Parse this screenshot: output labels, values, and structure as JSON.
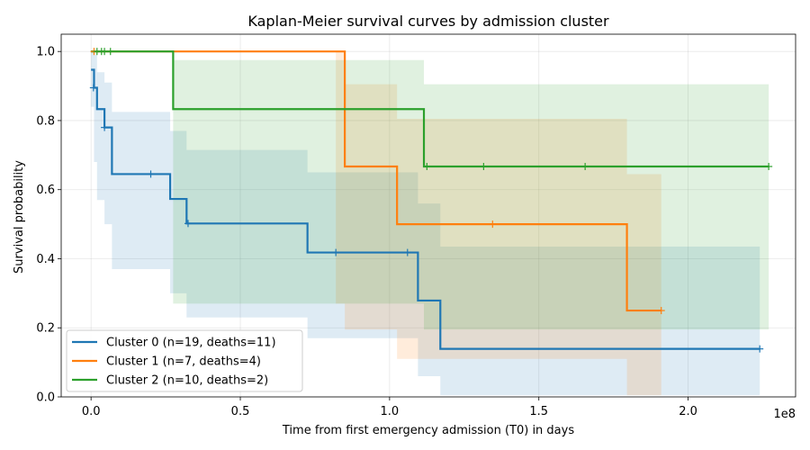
{
  "chart_data": {
    "type": "line",
    "title": "Kaplan-Meier survival curves by admission cluster",
    "xlabel": "Time from first emergency admission (T0) in days",
    "ylabel": "Survival probability",
    "x_offset_label": "1e8",
    "xlim": [
      -0.1,
      2.36
    ],
    "ylim": [
      0.0,
      1.05
    ],
    "x_scale_factor": 100000000,
    "x_ticks": [
      0.0,
      0.5,
      1.0,
      1.5,
      2.0
    ],
    "x_tick_labels": [
      "0.0",
      "0.5",
      "1.0",
      "1.5",
      "2.0"
    ],
    "y_ticks": [
      0.0,
      0.2,
      0.4,
      0.6,
      0.8,
      1.0
    ],
    "y_tick_labels": [
      "0.0",
      "0.2",
      "0.4",
      "0.6",
      "0.8",
      "1.0"
    ],
    "grid": true,
    "legend_position": "lower-left",
    "series": [
      {
        "name": "Cluster 0  (n=19, deaths=11)",
        "color": "#1f77b4",
        "steps": [
          [
            0.0,
            0.947
          ],
          [
            0.01,
            0.895
          ],
          [
            0.02,
            0.833
          ],
          [
            0.045,
            0.78
          ],
          [
            0.07,
            0.71
          ],
          [
            0.07,
            0.645
          ],
          [
            0.265,
            0.573
          ],
          [
            0.32,
            0.502
          ],
          [
            0.725,
            0.418
          ],
          [
            1.095,
            0.279
          ],
          [
            1.17,
            0.139
          ],
          [
            2.24,
            0.139
          ]
        ],
        "ci_upper": [
          [
            0.0,
            1.0
          ],
          [
            0.01,
            0.99
          ],
          [
            0.02,
            0.94
          ],
          [
            0.045,
            0.91
          ],
          [
            0.07,
            0.825
          ],
          [
            0.265,
            0.77
          ],
          [
            0.32,
            0.715
          ],
          [
            0.725,
            0.65
          ],
          [
            1.095,
            0.56
          ],
          [
            1.17,
            0.435
          ],
          [
            2.24,
            0.435
          ]
        ],
        "ci_lower": [
          [
            0.0,
            0.84
          ],
          [
            0.01,
            0.68
          ],
          [
            0.02,
            0.57
          ],
          [
            0.045,
            0.5
          ],
          [
            0.07,
            0.37
          ],
          [
            0.265,
            0.3
          ],
          [
            0.32,
            0.23
          ],
          [
            0.725,
            0.17
          ],
          [
            1.095,
            0.06
          ],
          [
            1.17,
            0.005
          ],
          [
            2.24,
            0.005
          ]
        ],
        "censored": [
          [
            0.008,
            0.895
          ],
          [
            0.045,
            0.78
          ],
          [
            0.2,
            0.645
          ],
          [
            0.325,
            0.502
          ],
          [
            0.82,
            0.418
          ],
          [
            1.06,
            0.418
          ],
          [
            2.24,
            0.139
          ]
        ]
      },
      {
        "name": "Cluster 1  (n=7, deaths=4)",
        "color": "#ff7f0e",
        "steps": [
          [
            0.0,
            1.0
          ],
          [
            0.82,
            1.0
          ],
          [
            0.85,
            0.667
          ],
          [
            1.025,
            0.5
          ],
          [
            1.795,
            0.25
          ],
          [
            1.91,
            0.25
          ]
        ],
        "ci_upper": [
          [
            0.0,
            1.0
          ],
          [
            0.82,
            1.0
          ],
          [
            0.85,
            0.905
          ],
          [
            1.025,
            0.805
          ],
          [
            1.795,
            0.645
          ],
          [
            1.91,
            0.645
          ]
        ],
        "ci_lower": [
          [
            0.0,
            1.0
          ],
          [
            0.82,
            0.27
          ],
          [
            0.85,
            0.195
          ],
          [
            1.025,
            0.11
          ],
          [
            1.795,
            0.005
          ],
          [
            1.91,
            0.005
          ]
        ],
        "censored": [
          [
            0.01,
            1.0
          ],
          [
            1.345,
            0.5
          ],
          [
            1.91,
            0.25
          ]
        ]
      },
      {
        "name": "Cluster 2  (n=10, deaths=2)",
        "color": "#2ca02c",
        "steps": [
          [
            0.0,
            1.0
          ],
          [
            0.275,
            0.833
          ],
          [
            1.115,
            0.667
          ],
          [
            2.27,
            0.667
          ]
        ],
        "ci_upper": [
          [
            0.0,
            1.0
          ],
          [
            0.275,
            0.975
          ],
          [
            1.115,
            0.905
          ],
          [
            2.27,
            0.905
          ]
        ],
        "ci_lower": [
          [
            0.0,
            1.0
          ],
          [
            0.275,
            0.27
          ],
          [
            1.115,
            0.195
          ],
          [
            2.27,
            0.195
          ]
        ],
        "censored": [
          [
            0.02,
            1.0
          ],
          [
            0.035,
            1.0
          ],
          [
            0.045,
            1.0
          ],
          [
            0.065,
            1.0
          ],
          [
            1.125,
            0.667
          ],
          [
            1.315,
            0.667
          ],
          [
            1.655,
            0.667
          ],
          [
            2.27,
            0.667
          ]
        ]
      }
    ]
  }
}
